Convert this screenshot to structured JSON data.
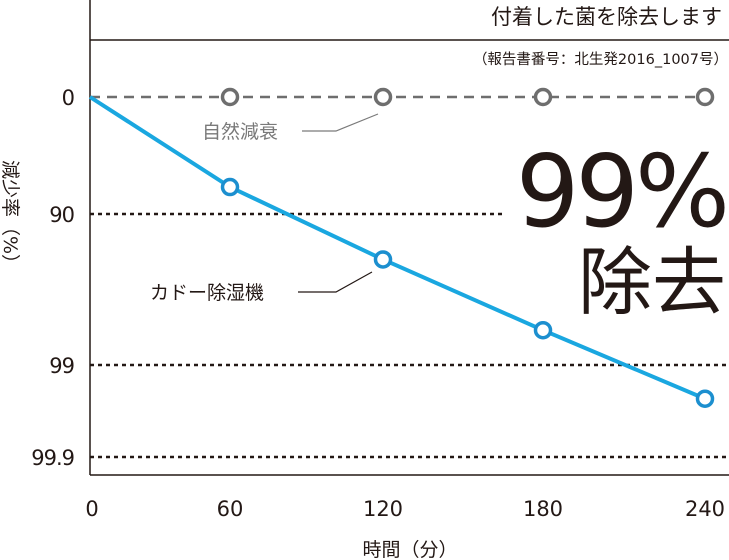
{
  "chart_data": {
    "type": "line",
    "title": "付着した菌を除去します",
    "subtitle": "（報告書番号：北生発2016_1007号）",
    "xlabel": "時間（分）",
    "ylabel": "減少率（%）",
    "x": [
      0,
      60,
      120,
      180,
      240
    ],
    "x_ticks": [
      "0",
      "60",
      "120",
      "180",
      "240"
    ],
    "y_ticks": [
      "0",
      "90",
      "99",
      "99.9"
    ],
    "y_scale": "log reduction (reversed)",
    "ylim": [
      0,
      99.9
    ],
    "grid": "dotted at 90, 99, 99.9",
    "series": [
      {
        "name": "自然減衰",
        "values": [
          0,
          0,
          0,
          0,
          0
        ],
        "color": "#6e6e6e",
        "style": "dashed"
      },
      {
        "name": "カドー除湿機",
        "values": [
          0,
          83,
          95,
          98.3,
          99.57
        ],
        "color": "#1aa7e0",
        "style": "solid"
      }
    ],
    "annotation_big": "99%",
    "annotation_sub": "除去"
  }
}
